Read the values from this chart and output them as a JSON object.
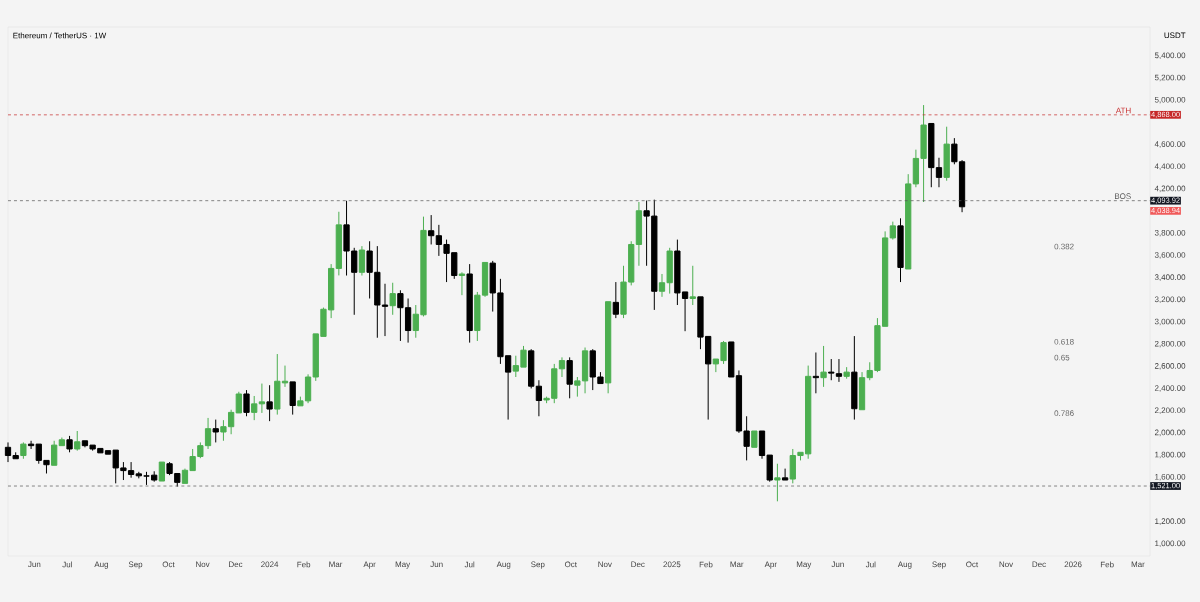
{
  "chart_data": {
    "type": "candlestick",
    "title": "Ethereum / TetherUS · 1W",
    "ylabel": "USDT",
    "x": [
      "2023-05-08",
      "2023-05-15",
      "2023-05-22",
      "2023-05-29",
      "2023-06-05",
      "2023-06-12",
      "2023-06-19",
      "2023-06-26",
      "2023-07-03",
      "2023-07-10",
      "2023-07-17",
      "2023-07-24",
      "2023-07-31",
      "2023-08-07",
      "2023-08-14",
      "2023-08-21",
      "2023-08-28",
      "2023-09-04",
      "2023-09-11",
      "2023-09-18",
      "2023-09-25",
      "2023-10-02",
      "2023-10-09",
      "2023-10-16",
      "2023-10-23",
      "2023-10-30",
      "2023-11-06",
      "2023-11-13",
      "2023-11-20",
      "2023-11-27",
      "2023-12-04",
      "2023-12-11",
      "2023-12-18",
      "2023-12-25",
      "2024-01-01",
      "2024-01-08",
      "2024-01-15",
      "2024-01-22",
      "2024-01-29",
      "2024-02-05",
      "2024-02-12",
      "2024-02-19",
      "2024-02-26",
      "2024-03-04",
      "2024-03-11",
      "2024-03-18",
      "2024-03-25",
      "2024-04-01",
      "2024-04-08",
      "2024-04-15",
      "2024-04-22",
      "2024-04-29",
      "2024-05-06",
      "2024-05-13",
      "2024-05-20",
      "2024-05-27",
      "2024-06-03",
      "2024-06-10",
      "2024-06-17",
      "2024-06-24",
      "2024-07-01",
      "2024-07-08",
      "2024-07-15",
      "2024-07-22",
      "2024-07-29",
      "2024-08-05",
      "2024-08-12",
      "2024-08-19",
      "2024-08-26",
      "2024-09-02",
      "2024-09-09",
      "2024-09-16",
      "2024-09-23",
      "2024-09-30",
      "2024-10-07",
      "2024-10-14",
      "2024-10-21",
      "2024-10-28",
      "2024-11-04",
      "2024-11-11",
      "2024-11-18",
      "2024-11-25",
      "2024-12-02",
      "2024-12-09",
      "2024-12-16",
      "2024-12-23",
      "2024-12-30",
      "2025-01-06",
      "2025-01-13",
      "2025-01-20",
      "2025-01-27",
      "2025-02-03",
      "2025-02-10",
      "2025-02-17",
      "2025-02-24",
      "2025-03-03",
      "2025-03-10",
      "2025-03-17",
      "2025-03-24",
      "2025-03-31",
      "2025-04-07",
      "2025-04-14",
      "2025-04-21",
      "2025-04-28",
      "2025-05-05",
      "2025-05-12",
      "2025-05-19",
      "2025-05-26",
      "2025-06-02",
      "2025-06-09",
      "2025-06-16",
      "2025-06-23",
      "2025-06-30",
      "2025-07-07",
      "2025-07-14",
      "2025-07-21",
      "2025-07-28",
      "2025-08-04",
      "2025-08-11",
      "2025-08-18",
      "2025-08-25",
      "2025-09-01",
      "2025-09-08",
      "2025-09-15",
      "2025-09-22"
    ],
    "ohlc": [
      [
        1870,
        1914,
        1737,
        1796
      ],
      [
        1796,
        1825,
        1767,
        1781
      ],
      [
        1796,
        1914,
        1767,
        1899
      ],
      [
        1899,
        1929,
        1855,
        1885
      ],
      [
        1885,
        1899,
        1722,
        1752
      ],
      [
        1752,
        1752,
        1634,
        1713
      ],
      [
        1713,
        1929,
        1708,
        1890
      ],
      [
        1890,
        1958,
        1885,
        1938
      ],
      [
        1938,
        1973,
        1825,
        1855
      ],
      [
        1855,
        2017,
        1840,
        1920
      ],
      [
        1920,
        1929,
        1870,
        1885
      ],
      [
        1885,
        1890,
        1840,
        1855
      ],
      [
        1855,
        1860,
        1820,
        1831
      ],
      [
        1831,
        1840,
        1808,
        1820
      ],
      [
        1840,
        1845,
        1545,
        1684
      ],
      [
        1684,
        1737,
        1575,
        1660
      ],
      [
        1660,
        1737,
        1596,
        1625
      ],
      [
        1631,
        1649,
        1590,
        1613
      ],
      [
        1613,
        1649,
        1531,
        1610
      ],
      [
        1619,
        1654,
        1560,
        1575
      ],
      [
        1575,
        1737,
        1566,
        1731
      ],
      [
        1722,
        1737,
        1619,
        1634
      ],
      [
        1628,
        1634,
        1516,
        1554
      ],
      [
        1554,
        1678,
        1545,
        1663
      ],
      [
        1663,
        1855,
        1660,
        1787
      ],
      [
        1787,
        1914,
        1772,
        1885
      ],
      [
        1885,
        2135,
        1855,
        2038
      ],
      [
        2038,
        2120,
        1914,
        2008
      ],
      [
        2008,
        2115,
        1929,
        2056
      ],
      [
        2056,
        2209,
        1988,
        2185
      ],
      [
        2185,
        2371,
        2180,
        2351
      ],
      [
        2351,
        2386,
        2150,
        2185
      ],
      [
        2185,
        2333,
        2115,
        2262
      ],
      [
        2262,
        2445,
        2180,
        2280
      ],
      [
        2280,
        2430,
        2106,
        2215
      ],
      [
        2215,
        2711,
        2165,
        2466
      ],
      [
        2451,
        2607,
        2415,
        2466
      ],
      [
        2454,
        2460,
        2165,
        2247
      ],
      [
        2247,
        2327,
        2244,
        2289
      ],
      [
        2289,
        2528,
        2268,
        2504
      ],
      [
        2504,
        2893,
        2469,
        2879
      ],
      [
        2879,
        3130,
        2870,
        3115
      ],
      [
        3109,
        3522,
        3035,
        3483
      ],
      [
        3483,
        3994,
        3420,
        3876
      ],
      [
        3876,
        4093,
        3419,
        3640
      ],
      [
        3640,
        3669,
        3065,
        3448
      ],
      [
        3448,
        3684,
        3419,
        3649
      ],
      [
        3640,
        3728,
        3212,
        3448
      ],
      [
        3448,
        3684,
        2858,
        3153
      ],
      [
        3153,
        3345,
        2873,
        3141
      ],
      [
        3147,
        3354,
        3065,
        3256
      ],
      [
        3256,
        3286,
        2829,
        3129
      ],
      [
        3129,
        3212,
        2814,
        2923
      ],
      [
        2923,
        3153,
        2858,
        3070
      ],
      [
        3065,
        3950,
        3050,
        3826
      ],
      [
        3823,
        3964,
        3699,
        3778
      ],
      [
        3778,
        3876,
        3596,
        3699
      ],
      [
        3699,
        3743,
        3360,
        3619
      ],
      [
        3619,
        3625,
        3389,
        3419
      ],
      [
        3419,
        3448,
        3242,
        3433
      ],
      [
        3433,
        3522,
        2814,
        2923
      ],
      [
        2923,
        3271,
        2829,
        3242
      ],
      [
        3242,
        3537,
        3227,
        3531
      ],
      [
        3531,
        3551,
        3094,
        3262
      ],
      [
        3262,
        3389,
        2622,
        2687
      ],
      [
        2687,
        2696,
        2120,
        2548
      ],
      [
        2557,
        2696,
        2504,
        2607
      ],
      [
        2607,
        2784,
        2593,
        2746
      ],
      [
        2740,
        2755,
        2401,
        2421
      ],
      [
        2421,
        2475,
        2150,
        2292
      ],
      [
        2297,
        2327,
        2268,
        2312
      ],
      [
        2312,
        2622,
        2268,
        2578
      ],
      [
        2578,
        2681,
        2504,
        2652
      ],
      [
        2652,
        2681,
        2312,
        2439
      ],
      [
        2430,
        2504,
        2327,
        2469
      ],
      [
        2469,
        2770,
        2357,
        2740
      ],
      [
        2740,
        2755,
        2386,
        2504
      ],
      [
        2504,
        2548,
        2445,
        2451
      ],
      [
        2451,
        3183,
        2357,
        3177
      ],
      [
        3177,
        3360,
        3035,
        3070
      ],
      [
        3070,
        3507,
        3035,
        3360
      ],
      [
        3360,
        3728,
        3330,
        3699
      ],
      [
        3699,
        4082,
        3507,
        4003
      ],
      [
        4003,
        4095,
        3507,
        3955
      ],
      [
        3955,
        4103,
        3109,
        3277
      ],
      [
        3277,
        3433,
        3227,
        3354
      ],
      [
        3354,
        3669,
        3256,
        3640
      ],
      [
        3640,
        3743,
        3153,
        3262
      ],
      [
        3262,
        3271,
        2917,
        3212
      ],
      [
        3212,
        3507,
        3153,
        3227
      ],
      [
        3227,
        3227,
        2755,
        2864
      ],
      [
        2864,
        2870,
        2120,
        2622
      ],
      [
        2622,
        2666,
        2548,
        2652
      ],
      [
        2652,
        2829,
        2622,
        2814
      ],
      [
        2814,
        2820,
        2504,
        2516
      ],
      [
        2516,
        2563,
        2000,
        2017
      ],
      [
        2017,
        2150,
        1752,
        1879
      ],
      [
        1879,
        2017,
        1870,
        2008
      ],
      [
        2008,
        2017,
        1767,
        1796
      ],
      [
        1796,
        1800,
        1560,
        1575
      ],
      [
        1575,
        1722,
        1383,
        1595
      ],
      [
        1595,
        1678,
        1575,
        1584
      ],
      [
        1584,
        1855,
        1545,
        1796
      ],
      [
        1796,
        1825,
        1752,
        1811
      ],
      [
        1811,
        2607,
        1767,
        2510
      ],
      [
        2510,
        2725,
        2357,
        2498
      ],
      [
        2498,
        2784,
        2415,
        2548
      ],
      [
        2548,
        2666,
        2475,
        2539
      ],
      [
        2534,
        2666,
        2460,
        2510
      ],
      [
        2510,
        2593,
        2489,
        2548
      ],
      [
        2548,
        2873,
        2120,
        2218
      ],
      [
        2218,
        2548,
        2209,
        2498
      ],
      [
        2498,
        2637,
        2475,
        2563
      ],
      [
        2563,
        3035,
        2548,
        2967
      ],
      [
        2967,
        3817,
        2961,
        3758
      ],
      [
        3758,
        3905,
        3743,
        3867
      ],
      [
        3867,
        3935,
        3360,
        3492
      ],
      [
        3492,
        4333,
        3478,
        4245
      ],
      [
        4245,
        4554,
        4215,
        4475
      ],
      [
        4475,
        4956,
        4082,
        4776
      ],
      [
        4776,
        4790,
        4215,
        4392
      ],
      [
        4392,
        4481,
        4215,
        4304
      ],
      [
        4304,
        4761,
        4274,
        4604
      ],
      [
        4604,
        4658,
        4422,
        4445
      ],
      [
        4445,
        4460,
        3990,
        4038.94
      ]
    ],
    "colors": [
      "#000000",
      "#000000",
      "#4caf50",
      "#000000",
      "#000000",
      "#000000",
      "#4caf50",
      "#4caf50",
      "#000000",
      "#4caf50",
      "#000000",
      "#000000",
      "#000000",
      "#000000",
      "#000000",
      "#000000",
      "#000000",
      "#000000",
      "#000000",
      "#000000",
      "#4caf50",
      "#000000",
      "#000000",
      "#4caf50",
      "#4caf50",
      "#4caf50",
      "#4caf50",
      "#000000",
      "#4caf50",
      "#4caf50",
      "#4caf50",
      "#000000",
      "#4caf50",
      "#4caf50",
      "#000000",
      "#4caf50",
      "#4caf50",
      "#000000",
      "#4caf50",
      "#4caf50",
      "#4caf50",
      "#4caf50",
      "#4caf50",
      "#4caf50",
      "#000000",
      "#000000",
      "#4caf50",
      "#000000",
      "#000000",
      "#000000",
      "#4caf50",
      "#000000",
      "#000000",
      "#4caf50",
      "#4caf50",
      "#000000",
      "#000000",
      "#000000",
      "#000000",
      "#4caf50",
      "#000000",
      "#4caf50",
      "#4caf50",
      "#000000",
      "#000000",
      "#000000",
      "#4caf50",
      "#4caf50",
      "#000000",
      "#000000",
      "#4caf50",
      "#4caf50",
      "#4caf50",
      "#000000",
      "#4caf50",
      "#4caf50",
      "#000000",
      "#000000",
      "#4caf50",
      "#000000",
      "#4caf50",
      "#4caf50",
      "#4caf50",
      "#000000",
      "#000000",
      "#4caf50",
      "#4caf50",
      "#000000",
      "#000000",
      "#4caf50",
      "#000000",
      "#000000",
      "#4caf50",
      "#4caf50",
      "#000000",
      "#000000",
      "#000000",
      "#4caf50",
      "#000000",
      "#000000",
      "#4caf50",
      "#000000",
      "#4caf50",
      "#4caf50",
      "#4caf50",
      "#000000",
      "#4caf50",
      "#000000",
      "#000000",
      "#4caf50",
      "#000000",
      "#4caf50",
      "#4caf50",
      "#4caf50",
      "#4caf50",
      "#4caf50",
      "#000000",
      "#4caf50",
      "#4caf50",
      "#4caf50",
      "#000000",
      "#000000",
      "#4caf50",
      "#000000",
      "#000000"
    ],
    "xlim": [
      "2023-05-08",
      "2026-03-12"
    ],
    "xticks": [
      {
        "value": "2023-06-01",
        "label": "Jun"
      },
      {
        "value": "2023-07-01",
        "label": "Jul"
      },
      {
        "value": "2023-08-01",
        "label": "Aug"
      },
      {
        "value": "2023-09-01",
        "label": "Sep"
      },
      {
        "value": "2023-10-01",
        "label": "Oct"
      },
      {
        "value": "2023-11-01",
        "label": "Nov"
      },
      {
        "value": "2023-12-01",
        "label": "Dec"
      },
      {
        "value": "2024-01-01",
        "label": "2024"
      },
      {
        "value": "2024-02-01",
        "label": "Feb"
      },
      {
        "value": "2024-03-01",
        "label": "Mar"
      },
      {
        "value": "2024-04-01",
        "label": "Apr"
      },
      {
        "value": "2024-05-01",
        "label": "May"
      },
      {
        "value": "2024-06-01",
        "label": "Jun"
      },
      {
        "value": "2024-07-01",
        "label": "Jul"
      },
      {
        "value": "2024-08-01",
        "label": "Aug"
      },
      {
        "value": "2024-09-01",
        "label": "Sep"
      },
      {
        "value": "2024-10-01",
        "label": "Oct"
      },
      {
        "value": "2024-11-01",
        "label": "Nov"
      },
      {
        "value": "2024-12-01",
        "label": "Dec"
      },
      {
        "value": "2025-01-01",
        "label": "2025"
      },
      {
        "value": "2025-02-01",
        "label": "Feb"
      },
      {
        "value": "2025-03-01",
        "label": "Mar"
      },
      {
        "value": "2025-04-01",
        "label": "Apr"
      },
      {
        "value": "2025-05-01",
        "label": "May"
      },
      {
        "value": "2025-06-01",
        "label": "Jun"
      },
      {
        "value": "2025-07-01",
        "label": "Jul"
      },
      {
        "value": "2025-08-01",
        "label": "Aug"
      },
      {
        "value": "2025-09-01",
        "label": "Sep"
      },
      {
        "value": "2025-10-01",
        "label": "Oct"
      },
      {
        "value": "2025-11-01",
        "label": "Nov"
      },
      {
        "value": "2025-12-01",
        "label": "Dec"
      },
      {
        "value": "2026-01-01",
        "label": "2026"
      },
      {
        "value": "2026-02-01",
        "label": "Feb"
      },
      {
        "value": "2026-03-01",
        "label": "Mar"
      }
    ],
    "ylim": [
      890,
      5660
    ],
    "yticks": [
      {
        "value": 1000,
        "label": "1,000.00"
      },
      {
        "value": 1200,
        "label": "1,200.00"
      },
      {
        "value": 1600,
        "label": "1,600.00"
      },
      {
        "value": 1800,
        "label": "1,800.00"
      },
      {
        "value": 2000,
        "label": "2,000.00"
      },
      {
        "value": 2200,
        "label": "2,200.00"
      },
      {
        "value": 2400,
        "label": "2,400.00"
      },
      {
        "value": 2600,
        "label": "2,600.00"
      },
      {
        "value": 2800,
        "label": "2,800.00"
      },
      {
        "value": 3000,
        "label": "3,000.00"
      },
      {
        "value": 3200,
        "label": "3,200.00"
      },
      {
        "value": 3400,
        "label": "3,400.00"
      },
      {
        "value": 3600,
        "label": "3,600.00"
      },
      {
        "value": 3800,
        "label": "3,800.00"
      },
      {
        "value": 4200,
        "label": "4,200.00"
      },
      {
        "value": 4400,
        "label": "4,400.00"
      },
      {
        "value": 4600,
        "label": "4,600.00"
      },
      {
        "value": 5000,
        "label": "5,000.00"
      },
      {
        "value": 5200,
        "label": "5,200.00"
      },
      {
        "value": 5400,
        "label": "5,400.00"
      }
    ],
    "ref_lines": [
      {
        "axis": "y",
        "value": 4868,
        "label": "ATH",
        "color": "#c62828",
        "line_style": "dashed"
      },
      {
        "axis": "y",
        "value": 4093.92,
        "label": "BOS",
        "color": "#555555",
        "line_style": "dashed"
      },
      {
        "axis": "y",
        "value": 1521,
        "color": "#555555",
        "line_style": "dashed"
      }
    ],
    "annotations": [
      "0.382",
      "0.618",
      "0.65",
      "0.786",
      "4,868.00",
      "4,093.92",
      "1,521.00",
      "4,038.94"
    ]
  }
}
